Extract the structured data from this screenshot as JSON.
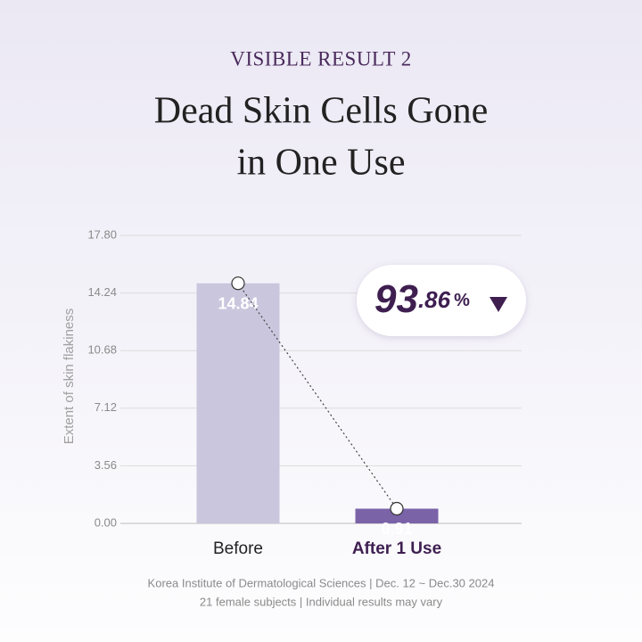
{
  "header": "VISIBLE RESULT 2",
  "chart_data": {
    "type": "bar",
    "title": [
      "Dead Skin Cells Gone",
      "in One Use"
    ],
    "y_label": "Extent of skin flakiness",
    "categories": [
      "Before",
      "After 1 Use"
    ],
    "values": [
      14.84,
      0.91
    ],
    "colors": [
      "#cac6dd",
      "#7b63a8"
    ],
    "ylim": [
      0,
      17.8
    ],
    "yticks": [
      {
        "value": 0,
        "label": "0.00"
      },
      3.56,
      7.12,
      10.68,
      14.24,
      {
        "value": 17.8,
        "label": "17.80"
      }
    ],
    "grid": true,
    "callout": {
      "whole": "93",
      "fraction": ".86",
      "unit": "%"
    }
  },
  "footnote": [
    "Korea Institute of Dermatological Sciences | Dec. 12 ~ Dec.30 2024",
    "21 female subjects | Individual results may vary"
  ]
}
